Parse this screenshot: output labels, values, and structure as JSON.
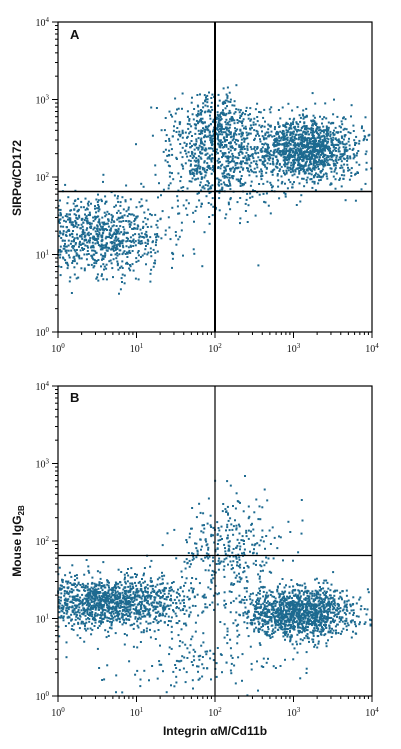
{
  "figure": {
    "x_axis_label": "Integrin αM/Cd11b",
    "tick_base": "10",
    "tick_exponents": [
      "0",
      "1",
      "2",
      "3",
      "4"
    ]
  },
  "chart_data": [
    {
      "type": "scatter",
      "panel": "A",
      "xlabel": "",
      "ylabel": "SIRPα/CD172",
      "xscale": "log",
      "yscale": "log",
      "xlim": [
        1,
        10000
      ],
      "ylim": [
        1,
        10000
      ],
      "grid": false,
      "point_color": "#1d6a90",
      "quadrant_gates": {
        "x": 100,
        "y": 65
      },
      "populations": [
        {
          "center": [
            3,
            18
          ],
          "spread_decades": [
            0.45,
            0.25
          ],
          "weight": 0.3
        },
        {
          "center": [
            1500,
            220
          ],
          "spread_decades": [
            0.32,
            0.22
          ],
          "weight": 0.4
        },
        {
          "center": [
            120,
            160
          ],
          "spread_decades": [
            0.35,
            0.3
          ],
          "weight": 0.2
        },
        {
          "center": [
            100,
            500
          ],
          "spread_decades": [
            0.25,
            0.2
          ],
          "weight": 0.1
        }
      ],
      "point_count": 3200,
      "seed": 11
    },
    {
      "type": "scatter",
      "panel": "B",
      "xlabel": "Integrin αM/Cd11b",
      "ylabel": "Mouse IgG",
      "ylabel_subscript": "2B",
      "xscale": "log",
      "yscale": "log",
      "xlim": [
        1,
        10000
      ],
      "ylim": [
        1,
        10000
      ],
      "grid": false,
      "point_color": "#1d6a90",
      "quadrant_gates": {
        "x": 100,
        "y": 65
      },
      "populations": [
        {
          "center": [
            4,
            16
          ],
          "spread_decades": [
            0.55,
            0.17
          ],
          "weight": 0.45
        },
        {
          "center": [
            1200,
            12
          ],
          "spread_decades": [
            0.35,
            0.16
          ],
          "weight": 0.4
        },
        {
          "center": [
            150,
            80
          ],
          "spread_decades": [
            0.35,
            0.3
          ],
          "weight": 0.1
        },
        {
          "center": [
            80,
            3
          ],
          "spread_decades": [
            0.6,
            0.25
          ],
          "weight": 0.05
        }
      ],
      "point_count": 3200,
      "seed": 23
    }
  ]
}
